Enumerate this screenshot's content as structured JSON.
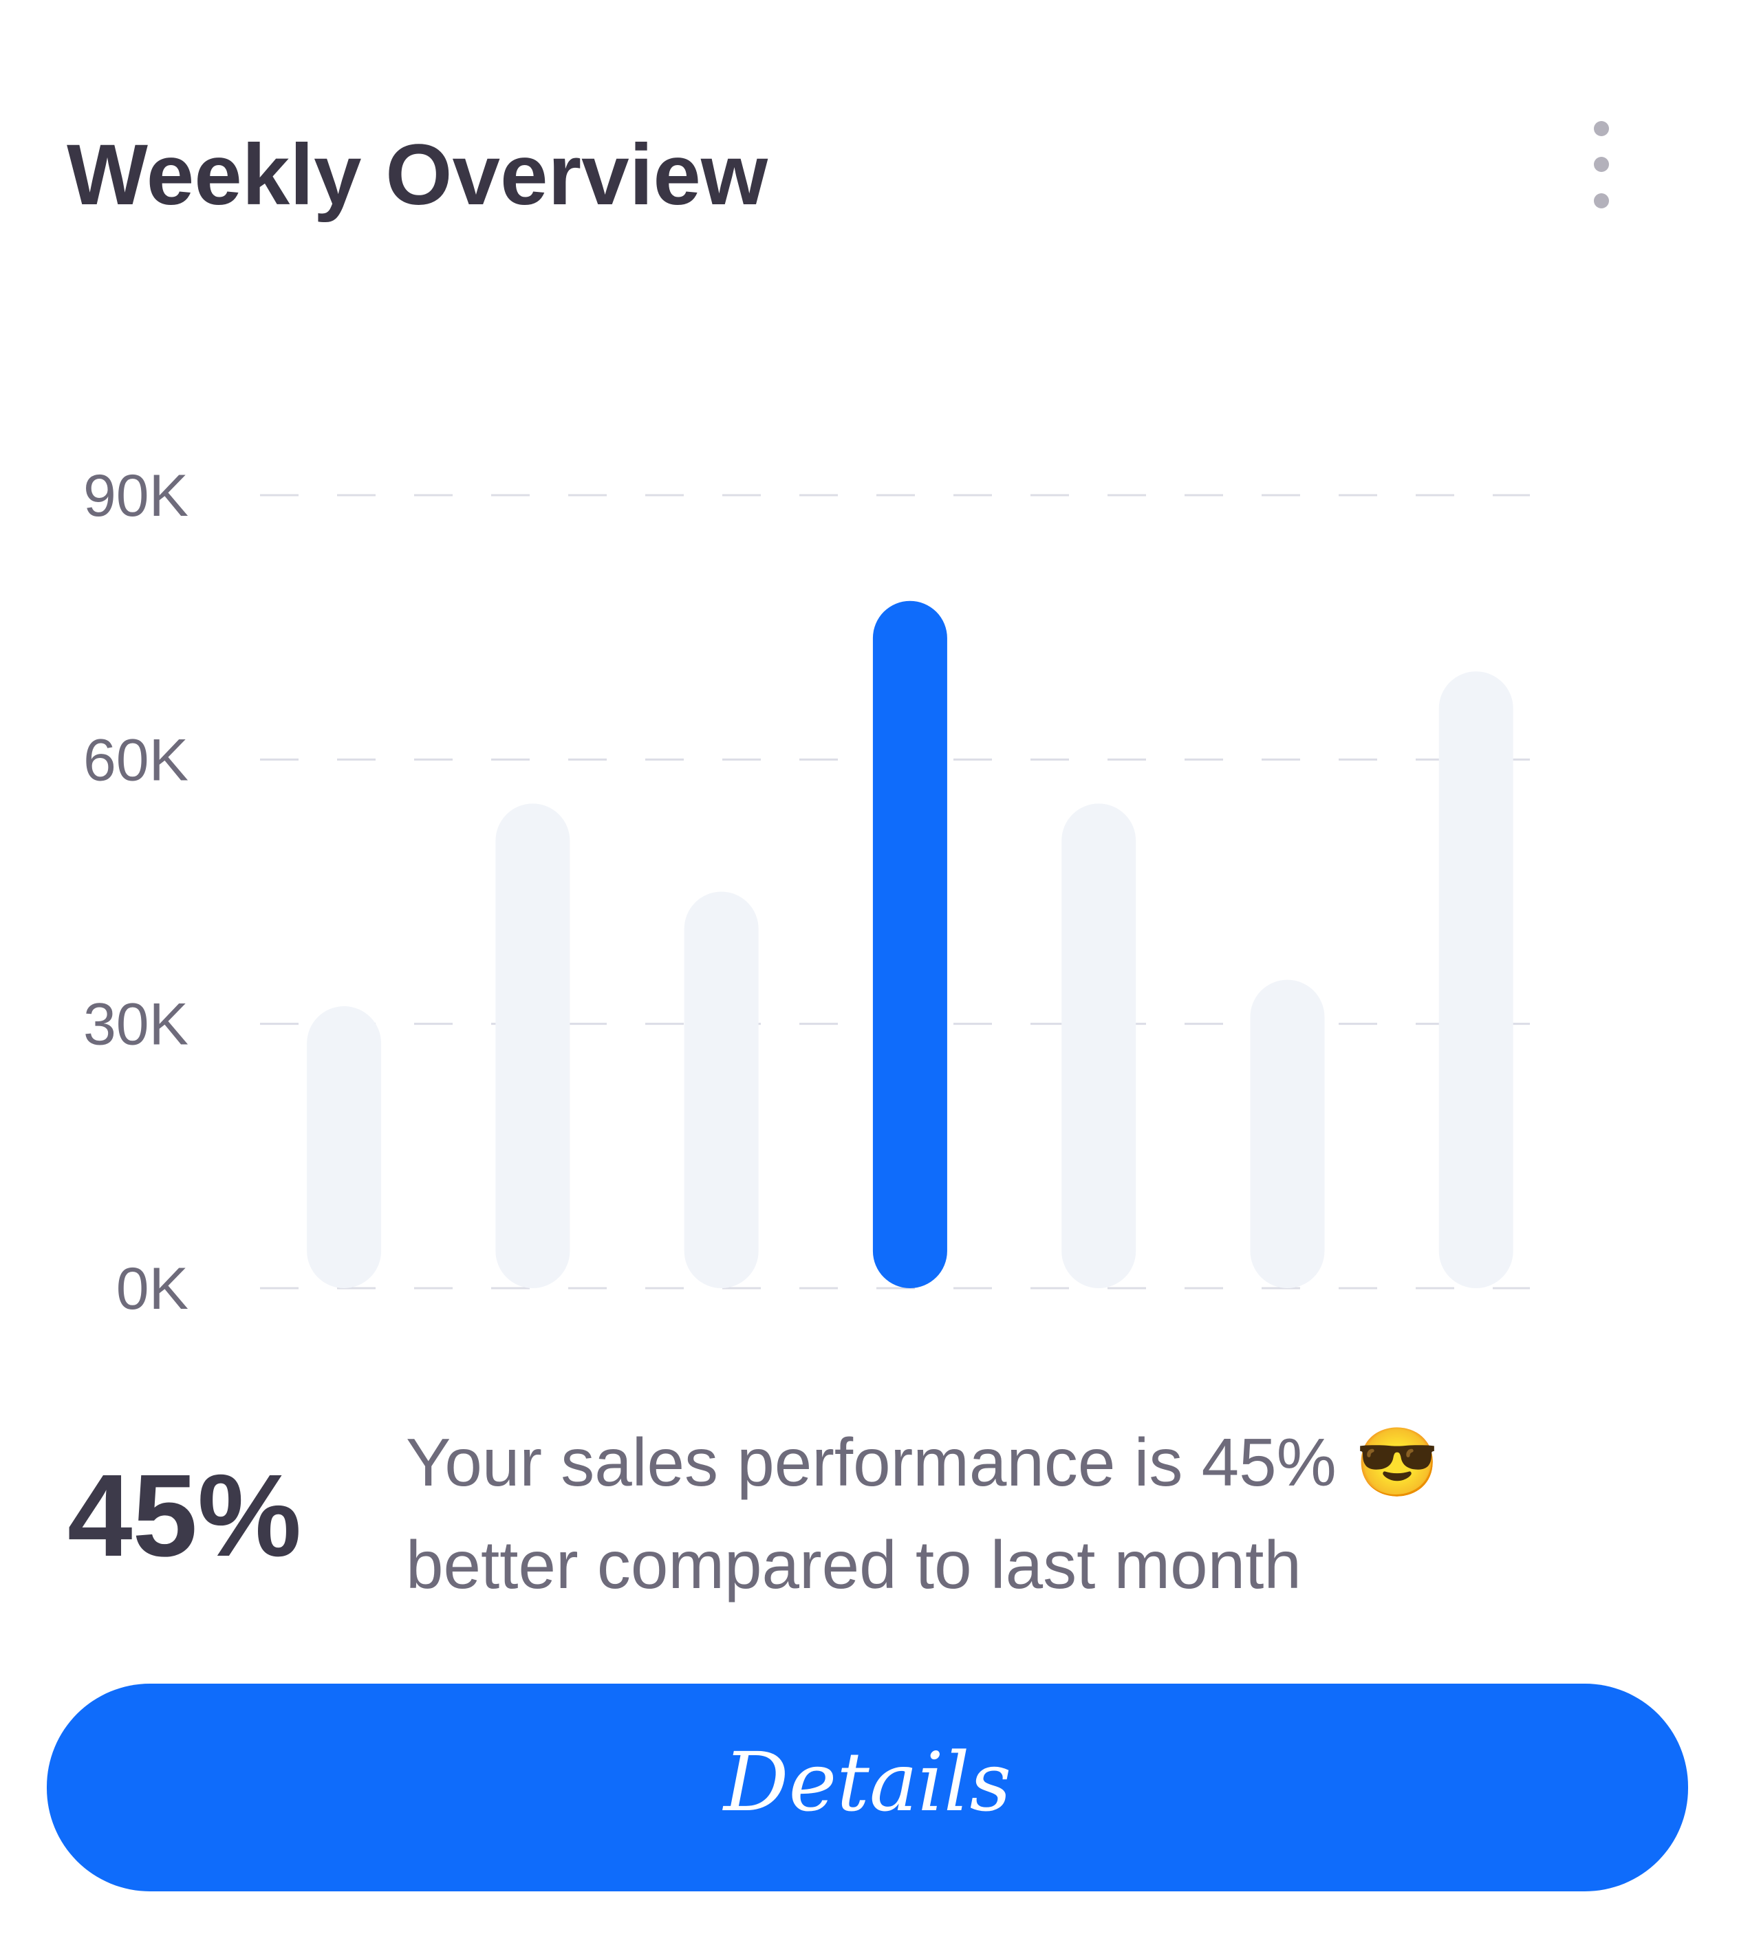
{
  "header": {
    "title": "Weekly Overview"
  },
  "chart_data": {
    "type": "bar",
    "categories": [
      null,
      null,
      null,
      null,
      null,
      null,
      null
    ],
    "values": [
      32000,
      55000,
      45000,
      78000,
      55000,
      35000,
      70000
    ],
    "colors": [
      "#f1f4f9",
      "#f1f4f9",
      "#f1f4f9",
      "#0f6cfb",
      "#f1f4f9",
      "#f1f4f9",
      "#f1f4f9"
    ],
    "ylim": [
      0,
      90000
    ],
    "yticks": [
      {
        "value": 0,
        "label": "0K"
      },
      {
        "value": 30000,
        "label": "30K"
      },
      {
        "value": 60000,
        "label": "60K"
      },
      {
        "value": 90000,
        "label": "90K"
      }
    ],
    "grid": true
  },
  "summary": {
    "value": "45%",
    "lines": [
      "Your sales performance is 45% 😎",
      "better compared to last month"
    ]
  },
  "button": {
    "label": "Details"
  }
}
